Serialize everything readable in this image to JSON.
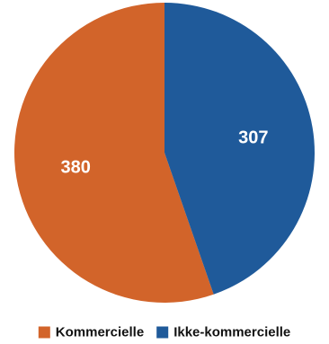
{
  "chart_data": {
    "type": "pie",
    "title": "",
    "slices": [
      {
        "label": "Kommercielle",
        "value": 380,
        "color": "#D2642A"
      },
      {
        "label": "Ikke-kommercielle",
        "value": 307,
        "color": "#1F5A9A"
      }
    ],
    "legend_position": "bottom",
    "start_angle": "top",
    "direction": "counterclockwise"
  }
}
